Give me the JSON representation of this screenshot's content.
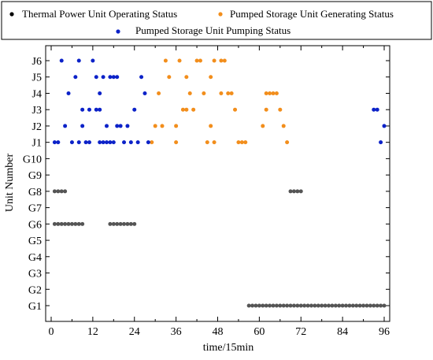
{
  "chart_data": {
    "type": "scatter",
    "xlabel": "time/15min",
    "ylabel": "Unit Number",
    "xlim": [
      -1,
      97
    ],
    "x_ticks": [
      "0",
      "12",
      "24",
      "36",
      "48",
      "60",
      "72",
      "84",
      "96"
    ],
    "x_tick_values": [
      0,
      12,
      24,
      36,
      48,
      60,
      72,
      84,
      96
    ],
    "categories": [
      "G1",
      "G2",
      "G3",
      "G4",
      "G5",
      "G6",
      "G7",
      "G8",
      "G9",
      "G10",
      "J1",
      "J2",
      "J3",
      "J4",
      "J5",
      "J6"
    ],
    "grid": false,
    "legend_position": "top",
    "series": [
      {
        "name": "Thermal Power Unit Operating Status",
        "color": "#555555",
        "legend_marker_color": "#000000",
        "points": [
          {
            "x": 57,
            "y": "G1"
          },
          {
            "x": 58,
            "y": "G1"
          },
          {
            "x": 59,
            "y": "G1"
          },
          {
            "x": 60,
            "y": "G1"
          },
          {
            "x": 61,
            "y": "G1"
          },
          {
            "x": 62,
            "y": "G1"
          },
          {
            "x": 63,
            "y": "G1"
          },
          {
            "x": 64,
            "y": "G1"
          },
          {
            "x": 65,
            "y": "G1"
          },
          {
            "x": 66,
            "y": "G1"
          },
          {
            "x": 67,
            "y": "G1"
          },
          {
            "x": 68,
            "y": "G1"
          },
          {
            "x": 69,
            "y": "G1"
          },
          {
            "x": 70,
            "y": "G1"
          },
          {
            "x": 71,
            "y": "G1"
          },
          {
            "x": 72,
            "y": "G1"
          },
          {
            "x": 73,
            "y": "G1"
          },
          {
            "x": 74,
            "y": "G1"
          },
          {
            "x": 75,
            "y": "G1"
          },
          {
            "x": 76,
            "y": "G1"
          },
          {
            "x": 77,
            "y": "G1"
          },
          {
            "x": 78,
            "y": "G1"
          },
          {
            "x": 79,
            "y": "G1"
          },
          {
            "x": 80,
            "y": "G1"
          },
          {
            "x": 81,
            "y": "G1"
          },
          {
            "x": 82,
            "y": "G1"
          },
          {
            "x": 83,
            "y": "G1"
          },
          {
            "x": 84,
            "y": "G1"
          },
          {
            "x": 85,
            "y": "G1"
          },
          {
            "x": 86,
            "y": "G1"
          },
          {
            "x": 87,
            "y": "G1"
          },
          {
            "x": 88,
            "y": "G1"
          },
          {
            "x": 89,
            "y": "G1"
          },
          {
            "x": 90,
            "y": "G1"
          },
          {
            "x": 91,
            "y": "G1"
          },
          {
            "x": 92,
            "y": "G1"
          },
          {
            "x": 93,
            "y": "G1"
          },
          {
            "x": 94,
            "y": "G1"
          },
          {
            "x": 95,
            "y": "G1"
          },
          {
            "x": 96,
            "y": "G1"
          },
          {
            "x": 1,
            "y": "G6"
          },
          {
            "x": 2,
            "y": "G6"
          },
          {
            "x": 3,
            "y": "G6"
          },
          {
            "x": 4,
            "y": "G6"
          },
          {
            "x": 5,
            "y": "G6"
          },
          {
            "x": 6,
            "y": "G6"
          },
          {
            "x": 7,
            "y": "G6"
          },
          {
            "x": 8,
            "y": "G6"
          },
          {
            "x": 9,
            "y": "G6"
          },
          {
            "x": 17,
            "y": "G6"
          },
          {
            "x": 18,
            "y": "G6"
          },
          {
            "x": 19,
            "y": "G6"
          },
          {
            "x": 20,
            "y": "G6"
          },
          {
            "x": 21,
            "y": "G6"
          },
          {
            "x": 22,
            "y": "G6"
          },
          {
            "x": 23,
            "y": "G6"
          },
          {
            "x": 24,
            "y": "G6"
          },
          {
            "x": 1,
            "y": "G8"
          },
          {
            "x": 2,
            "y": "G8"
          },
          {
            "x": 3,
            "y": "G8"
          },
          {
            "x": 4,
            "y": "G8"
          },
          {
            "x": 69,
            "y": "G8"
          },
          {
            "x": 70,
            "y": "G8"
          },
          {
            "x": 71,
            "y": "G8"
          },
          {
            "x": 72,
            "y": "G8"
          }
        ]
      },
      {
        "name": "Pumped Storage Unit Generating Status",
        "color": "#f28e1c",
        "legend_marker_color": "#f28e1c",
        "points": [
          {
            "x": 29,
            "y": "J1"
          },
          {
            "x": 36,
            "y": "J1"
          },
          {
            "x": 45,
            "y": "J1"
          },
          {
            "x": 47,
            "y": "J1"
          },
          {
            "x": 54,
            "y": "J1"
          },
          {
            "x": 55,
            "y": "J1"
          },
          {
            "x": 56,
            "y": "J1"
          },
          {
            "x": 68,
            "y": "J1"
          },
          {
            "x": 30,
            "y": "J2"
          },
          {
            "x": 32,
            "y": "J2"
          },
          {
            "x": 36,
            "y": "J2"
          },
          {
            "x": 46,
            "y": "J2"
          },
          {
            "x": 61,
            "y": "J2"
          },
          {
            "x": 67,
            "y": "J2"
          },
          {
            "x": 38,
            "y": "J3"
          },
          {
            "x": 39,
            "y": "J3"
          },
          {
            "x": 41,
            "y": "J3"
          },
          {
            "x": 53,
            "y": "J3"
          },
          {
            "x": 62,
            "y": "J3"
          },
          {
            "x": 66,
            "y": "J3"
          },
          {
            "x": 31,
            "y": "J4"
          },
          {
            "x": 40,
            "y": "J4"
          },
          {
            "x": 44,
            "y": "J4"
          },
          {
            "x": 49,
            "y": "J4"
          },
          {
            "x": 51,
            "y": "J4"
          },
          {
            "x": 52,
            "y": "J4"
          },
          {
            "x": 62,
            "y": "J4"
          },
          {
            "x": 63,
            "y": "J4"
          },
          {
            "x": 64,
            "y": "J4"
          },
          {
            "x": 65,
            "y": "J4"
          },
          {
            "x": 34,
            "y": "J5"
          },
          {
            "x": 39,
            "y": "J5"
          },
          {
            "x": 46,
            "y": "J5"
          },
          {
            "x": 33,
            "y": "J6"
          },
          {
            "x": 37,
            "y": "J6"
          },
          {
            "x": 42,
            "y": "J6"
          },
          {
            "x": 43,
            "y": "J6"
          },
          {
            "x": 47,
            "y": "J6"
          },
          {
            "x": 49,
            "y": "J6"
          },
          {
            "x": 50,
            "y": "J6"
          }
        ]
      },
      {
        "name": "Pumped Storage Unit Pumping Status",
        "color": "#0c22c8",
        "legend_marker_color": "#0c22c8",
        "points": [
          {
            "x": 1,
            "y": "J1"
          },
          {
            "x": 2,
            "y": "J1"
          },
          {
            "x": 6,
            "y": "J1"
          },
          {
            "x": 8,
            "y": "J1"
          },
          {
            "x": 10,
            "y": "J1"
          },
          {
            "x": 11,
            "y": "J1"
          },
          {
            "x": 14,
            "y": "J1"
          },
          {
            "x": 15,
            "y": "J1"
          },
          {
            "x": 16,
            "y": "J1"
          },
          {
            "x": 17,
            "y": "J1"
          },
          {
            "x": 18,
            "y": "J1"
          },
          {
            "x": 21,
            "y": "J1"
          },
          {
            "x": 23,
            "y": "J1"
          },
          {
            "x": 25,
            "y": "J1"
          },
          {
            "x": 28,
            "y": "J1"
          },
          {
            "x": 95,
            "y": "J1"
          },
          {
            "x": 4,
            "y": "J2"
          },
          {
            "x": 9,
            "y": "J2"
          },
          {
            "x": 16,
            "y": "J2"
          },
          {
            "x": 19,
            "y": "J2"
          },
          {
            "x": 20,
            "y": "J2"
          },
          {
            "x": 22,
            "y": "J2"
          },
          {
            "x": 96,
            "y": "J2"
          },
          {
            "x": 9,
            "y": "J3"
          },
          {
            "x": 11,
            "y": "J3"
          },
          {
            "x": 13,
            "y": "J3"
          },
          {
            "x": 14,
            "y": "J3"
          },
          {
            "x": 24,
            "y": "J3"
          },
          {
            "x": 93,
            "y": "J3"
          },
          {
            "x": 94,
            "y": "J3"
          },
          {
            "x": 5,
            "y": "J4"
          },
          {
            "x": 14,
            "y": "J4"
          },
          {
            "x": 27,
            "y": "J4"
          },
          {
            "x": 7,
            "y": "J5"
          },
          {
            "x": 13,
            "y": "J5"
          },
          {
            "x": 15,
            "y": "J5"
          },
          {
            "x": 17,
            "y": "J5"
          },
          {
            "x": 18,
            "y": "J5"
          },
          {
            "x": 19,
            "y": "J5"
          },
          {
            "x": 26,
            "y": "J5"
          },
          {
            "x": 3,
            "y": "J6"
          },
          {
            "x": 8,
            "y": "J6"
          },
          {
            "x": 12,
            "y": "J6"
          }
        ]
      }
    ]
  }
}
